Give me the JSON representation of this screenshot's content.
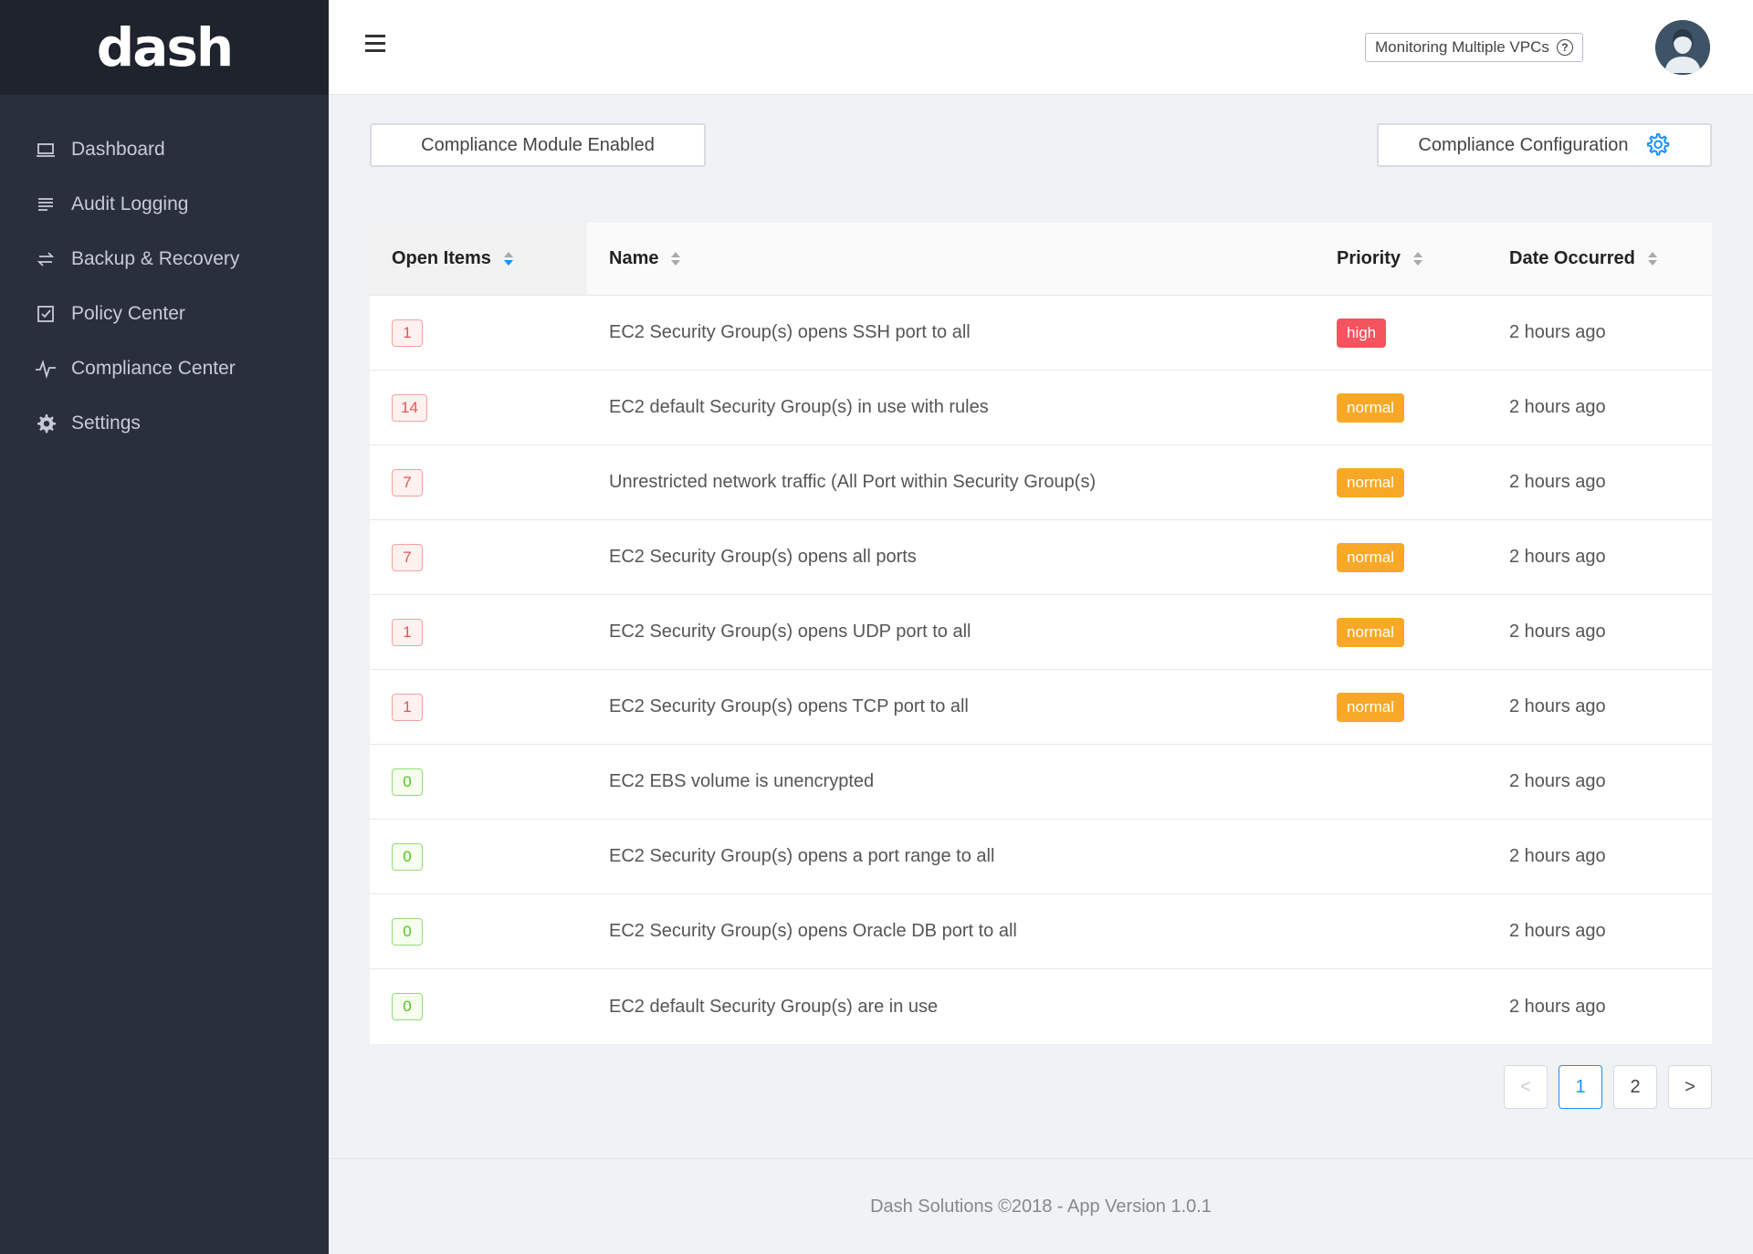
{
  "sidebar": {
    "logo": "dash",
    "items": [
      {
        "label": "Dashboard",
        "icon": "laptop-icon"
      },
      {
        "label": "Audit Logging",
        "icon": "list-icon"
      },
      {
        "label": "Backup & Recovery",
        "icon": "swap-icon"
      },
      {
        "label": "Policy Center",
        "icon": "checkbox-icon"
      },
      {
        "label": "Compliance Center",
        "icon": "pulse-icon"
      },
      {
        "label": "Settings",
        "icon": "gear-icon"
      }
    ]
  },
  "header": {
    "vpc_label": "Monitoring Multiple VPCs",
    "help_glyph": "?"
  },
  "actions": {
    "module_label": "Compliance Module Enabled",
    "config_label": "Compliance Configuration"
  },
  "table": {
    "columns": [
      "Open Items",
      "Name",
      "Priority",
      "Date Occurred"
    ],
    "rows": [
      {
        "count": "1",
        "status": "red",
        "name": "EC2 Security Group(s) opens SSH port to all",
        "priority": "high",
        "date": "2 hours ago"
      },
      {
        "count": "14",
        "status": "red",
        "name": "EC2 default Security Group(s) in use with rules",
        "priority": "normal",
        "date": "2 hours ago"
      },
      {
        "count": "7",
        "status": "red",
        "name": "Unrestricted network traffic (All Port within Security Group(s)",
        "priority": "normal",
        "date": "2 hours ago"
      },
      {
        "count": "7",
        "status": "red",
        "name": "EC2 Security Group(s) opens all ports",
        "priority": "normal",
        "date": "2 hours ago"
      },
      {
        "count": "1",
        "status": "red",
        "name": "EC2 Security Group(s) opens UDP port to all",
        "priority": "normal",
        "date": "2 hours ago"
      },
      {
        "count": "1",
        "status": "red",
        "name": "EC2 Security Group(s) opens TCP port to all",
        "priority": "normal",
        "date": "2 hours ago"
      },
      {
        "count": "0",
        "status": "green",
        "name": "EC2 EBS volume is unencrypted",
        "priority": "",
        "date": "2 hours ago"
      },
      {
        "count": "0",
        "status": "green",
        "name": "EC2 Security Group(s) opens a port range to all",
        "priority": "",
        "date": "2 hours ago"
      },
      {
        "count": "0",
        "status": "green",
        "name": "EC2 Security Group(s) opens Oracle DB port to all",
        "priority": "",
        "date": "2 hours ago"
      },
      {
        "count": "0",
        "status": "green",
        "name": "EC2 default Security Group(s) are in use",
        "priority": "",
        "date": "2 hours ago"
      }
    ]
  },
  "pagination": {
    "prev": "<",
    "pages": [
      "1",
      "2"
    ],
    "current": "1",
    "next": ">"
  },
  "footer": {
    "text": "Dash Solutions ©2018 - App Version 1.0.1"
  },
  "colors": {
    "sidebar_bg": "#2a2f3e",
    "accent": "#1890ff",
    "high": "#f5535e",
    "normal": "#f8a827"
  }
}
